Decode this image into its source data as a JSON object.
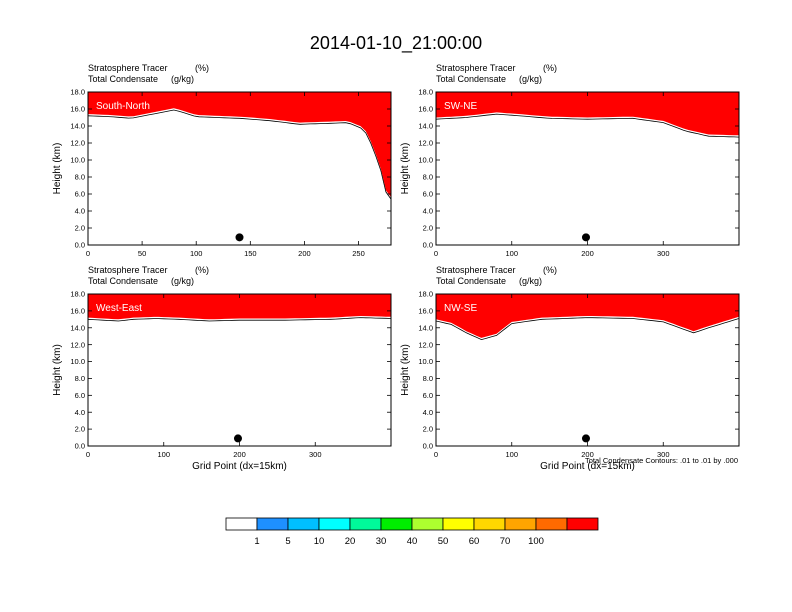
{
  "title": "2014-01-10_21:00:00",
  "colorbar": {
    "colors": [
      "#ffffff",
      "#1e90ff",
      "#00bfff",
      "#00ffff",
      "#00fa9a",
      "#00ee00",
      "#adff2f",
      "#ffff00",
      "#ffd700",
      "#ffa500",
      "#ff6a00",
      "#ff0000"
    ],
    "labels": [
      "1",
      "5",
      "10",
      "20",
      "30",
      "40",
      "50",
      "60",
      "70",
      "100"
    ]
  },
  "footnote": "Total Condensate Contours: .01 to .01 by .000",
  "chart_data": [
    {
      "type": "heatmap",
      "panel": "South-North",
      "subtitle_left_1": "Stratosphere Tracer",
      "subtitle_unit_1": "(%)",
      "subtitle_left_2": "Total Condensate",
      "subtitle_unit_2": "(g/kg)",
      "ylabel": "Height (km)",
      "xlabel": "",
      "xlim": [
        0,
        280
      ],
      "ylim": [
        0,
        18
      ],
      "xticks": [
        0,
        50,
        100,
        150,
        200,
        250
      ],
      "yticks": [
        "0.0",
        "2.0",
        "4.0",
        "6.0",
        "8.0",
        "10.0",
        "12.0",
        "14.0",
        "16.0",
        "18.0"
      ],
      "marker_x": 140,
      "tropopause_height": [
        [
          0,
          15.4
        ],
        [
          20,
          15.3
        ],
        [
          40,
          15.1
        ],
        [
          60,
          15.6
        ],
        [
          80,
          16.1
        ],
        [
          100,
          15.3
        ],
        [
          140,
          15.1
        ],
        [
          170,
          14.8
        ],
        [
          195,
          14.4
        ],
        [
          220,
          14.5
        ],
        [
          240,
          14.6
        ],
        [
          255,
          13.8
        ],
        [
          262,
          12.0
        ],
        [
          268,
          10.0
        ],
        [
          273,
          8.0
        ],
        [
          276,
          6.0
        ],
        [
          280,
          5.6
        ]
      ]
    },
    {
      "type": "heatmap",
      "panel": "SW-NE",
      "subtitle_left_1": "Stratosphere Tracer",
      "subtitle_unit_1": "(%)",
      "subtitle_left_2": "Total Condensate",
      "subtitle_unit_2": "(g/kg)",
      "ylabel": "Height (km)",
      "xlabel": "",
      "xlim": [
        0,
        400
      ],
      "ylim": [
        0,
        18
      ],
      "xticks": [
        0,
        100,
        200,
        300
      ],
      "yticks": [
        "0.0",
        "2.0",
        "4.0",
        "6.0",
        "8.0",
        "10.0",
        "12.0",
        "14.0",
        "16.0",
        "18.0"
      ],
      "marker_x": 198,
      "tropopause_height": [
        [
          0,
          15.0
        ],
        [
          40,
          15.2
        ],
        [
          80,
          15.6
        ],
        [
          110,
          15.4
        ],
        [
          150,
          15.1
        ],
        [
          200,
          15.0
        ],
        [
          260,
          15.1
        ],
        [
          300,
          14.6
        ],
        [
          330,
          13.6
        ],
        [
          360,
          13.0
        ],
        [
          400,
          12.9
        ]
      ]
    },
    {
      "type": "heatmap",
      "panel": "West-East",
      "subtitle_left_1": "Stratosphere Tracer",
      "subtitle_unit_1": "(%)",
      "subtitle_left_2": "Total Condensate",
      "subtitle_unit_2": "(g/kg)",
      "ylabel": "Height (km)",
      "xlabel": "Grid Point (dx=15km)",
      "xlim": [
        0,
        400
      ],
      "ylim": [
        0,
        18
      ],
      "xticks": [
        0,
        100,
        200,
        300
      ],
      "yticks": [
        "0.0",
        "2.0",
        "4.0",
        "6.0",
        "8.0",
        "10.0",
        "12.0",
        "14.0",
        "16.0",
        "18.0"
      ],
      "marker_x": 198,
      "tropopause_height": [
        [
          0,
          15.2
        ],
        [
          40,
          15.0
        ],
        [
          60,
          15.2
        ],
        [
          90,
          15.3
        ],
        [
          120,
          15.2
        ],
        [
          160,
          15.0
        ],
        [
          200,
          15.1
        ],
        [
          260,
          15.1
        ],
        [
          320,
          15.2
        ],
        [
          360,
          15.4
        ],
        [
          400,
          15.3
        ]
      ]
    },
    {
      "type": "heatmap",
      "panel": "NW-SE",
      "subtitle_left_1": "Stratosphere Tracer",
      "subtitle_unit_1": "(%)",
      "subtitle_left_2": "Total Condensate",
      "subtitle_unit_2": "(g/kg)",
      "ylabel": "Height (km)",
      "xlabel": "Grid Point (dx=15km)",
      "xlim": [
        0,
        400
      ],
      "ylim": [
        0,
        18
      ],
      "xticks": [
        0,
        100,
        200,
        300
      ],
      "yticks": [
        "0.0",
        "2.0",
        "4.0",
        "6.0",
        "8.0",
        "10.0",
        "12.0",
        "14.0",
        "16.0",
        "18.0"
      ],
      "marker_x": 198,
      "tropopause_height": [
        [
          0,
          15.0
        ],
        [
          20,
          14.6
        ],
        [
          40,
          13.6
        ],
        [
          60,
          12.8
        ],
        [
          80,
          13.3
        ],
        [
          100,
          14.7
        ],
        [
          140,
          15.2
        ],
        [
          200,
          15.4
        ],
        [
          260,
          15.3
        ],
        [
          300,
          14.9
        ],
        [
          340,
          13.6
        ],
        [
          360,
          14.2
        ],
        [
          400,
          15.3
        ]
      ]
    }
  ]
}
